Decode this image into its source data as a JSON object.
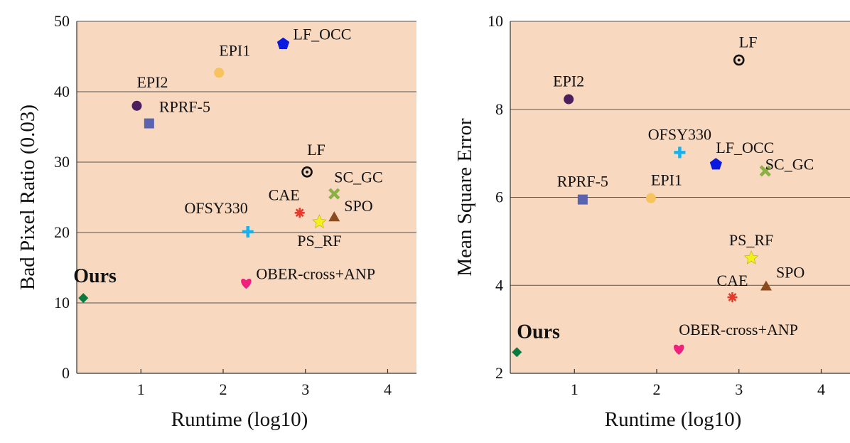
{
  "colors": {
    "plot_bg": "#f8d9bf",
    "grid": "#555555",
    "axis": "#333333"
  },
  "chart_data": [
    {
      "type": "scatter",
      "xlabel": "Runtime (log10)",
      "ylabel": "Bad Pixel Ratio (0.03)",
      "xlim": [
        0.22,
        4.35
      ],
      "ylim": [
        0,
        50
      ],
      "xticks": [
        1,
        2,
        3,
        4
      ],
      "yticks": [
        0,
        10,
        20,
        30,
        40,
        50
      ],
      "xtick_labels": [
        "1",
        "2",
        "3",
        "4"
      ],
      "ytick_labels": [
        "0",
        "10",
        "20",
        "30",
        "40",
        "50"
      ],
      "grid": "horizontal",
      "points": [
        {
          "name": "Ours",
          "x": 0.3,
          "y": 10.7,
          "marker": "diamond",
          "color": "#0b7a3e",
          "label_dx": -1,
          "label_dy": -22,
          "label_anchor": "start",
          "bold": true
        },
        {
          "name": "EPI2",
          "x": 0.95,
          "y": 38.0,
          "marker": "circle",
          "color": "#4a1f5c",
          "label_dx": 0,
          "label_dy": -26,
          "label_anchor": "start",
          "bold": false
        },
        {
          "name": "RPRF-5",
          "x": 1.1,
          "y": 35.5,
          "marker": "square",
          "color": "#5a63b0",
          "label_dx": 1,
          "label_dy": -16,
          "label_anchor": "start",
          "bold": false
        },
        {
          "name": "EPI1",
          "x": 1.95,
          "y": 42.7,
          "marker": "circle",
          "color": "#f6c35e",
          "label_dx": 0,
          "label_dy": -24,
          "label_anchor": "start",
          "bold": false
        },
        {
          "name": "LF_OCC",
          "x": 2.73,
          "y": 46.8,
          "marker": "pentagon",
          "color": "#0a18e0",
          "label_dx": 1,
          "label_dy": -6,
          "label_anchor": "start",
          "bold": false
        },
        {
          "name": "OFSY330",
          "x": 2.3,
          "y": 20.1,
          "marker": "plus",
          "color": "#19b0ec",
          "label_dx": 0,
          "label_dy": -26,
          "label_anchor": "end",
          "bold": false
        },
        {
          "name": "OBER-cross+ANP",
          "x": 2.28,
          "y": 12.8,
          "marker": "heart",
          "color": "#f0217e",
          "label_dx": 1,
          "label_dy": -6,
          "label_anchor": "start",
          "bold": false
        },
        {
          "name": "LF",
          "x": 3.02,
          "y": 28.6,
          "marker": "circledot",
          "color": "#111111",
          "label_dx": 0,
          "label_dy": -24,
          "label_anchor": "start",
          "bold": false
        },
        {
          "name": "CAE",
          "x": 2.93,
          "y": 22.8,
          "marker": "asterisk",
          "color": "#e53a2b",
          "label_dx": 0,
          "label_dy": -18,
          "label_anchor": "end",
          "bold": false
        },
        {
          "name": "PS_RF",
          "x": 3.17,
          "y": 21.5,
          "marker": "star",
          "color": "#f2f21a",
          "label_dx": 0,
          "label_dy": 34,
          "label_anchor": "middle",
          "bold": false
        },
        {
          "name": "SC_GC",
          "x": 3.35,
          "y": 25.5,
          "marker": "x",
          "color": "#8ab143",
          "label_dx": 0,
          "label_dy": -16,
          "label_anchor": "start",
          "bold": false
        },
        {
          "name": "SPO",
          "x": 3.35,
          "y": 22.2,
          "marker": "triangle",
          "color": "#8b4b1c",
          "label_dx": 1,
          "label_dy": -8,
          "label_anchor": "start",
          "bold": false
        }
      ]
    },
    {
      "type": "scatter",
      "xlabel": "Runtime (log10)",
      "ylabel": "Mean Square Error",
      "xlim": [
        0.22,
        4.35
      ],
      "ylim": [
        2,
        10
      ],
      "xticks": [
        1,
        2,
        3,
        4
      ],
      "yticks": [
        2,
        4,
        6,
        8,
        10
      ],
      "xtick_labels": [
        "1",
        "2",
        "3",
        "4"
      ],
      "ytick_labels": [
        "2",
        "4",
        "6",
        "8",
        "10"
      ],
      "grid": "horizontal",
      "points": [
        {
          "name": "Ours",
          "x": 0.3,
          "y": 2.48,
          "marker": "diamond",
          "color": "#0b7a3e",
          "label_dx": 0,
          "label_dy": -20,
          "label_anchor": "start",
          "bold": true
        },
        {
          "name": "EPI2",
          "x": 0.93,
          "y": 8.23,
          "marker": "circle",
          "color": "#4a1f5c",
          "label_dx": 0,
          "label_dy": -18,
          "label_anchor": "middle",
          "bold": false
        },
        {
          "name": "RPRF-5",
          "x": 1.1,
          "y": 5.95,
          "marker": "square",
          "color": "#5a63b0",
          "label_dx": 0,
          "label_dy": -18,
          "label_anchor": "middle",
          "bold": false
        },
        {
          "name": "EPI1",
          "x": 1.93,
          "y": 5.98,
          "marker": "circle",
          "color": "#f6c35e",
          "label_dx": 0,
          "label_dy": -18,
          "label_anchor": "start",
          "bold": false
        },
        {
          "name": "OFSY330",
          "x": 2.28,
          "y": 7.02,
          "marker": "plus",
          "color": "#19b0ec",
          "label_dx": 0,
          "label_dy": -18,
          "label_anchor": "middle",
          "bold": false
        },
        {
          "name": "LF_OCC",
          "x": 2.72,
          "y": 6.75,
          "marker": "pentagon",
          "color": "#0a18e0",
          "label_dx": 0,
          "label_dy": -16,
          "label_anchor": "start",
          "bold": false
        },
        {
          "name": "LF",
          "x": 3.0,
          "y": 9.12,
          "marker": "circledot",
          "color": "#111111",
          "label_dx": 0,
          "label_dy": -18,
          "label_anchor": "start",
          "bold": false
        },
        {
          "name": "SC_GC",
          "x": 3.32,
          "y": 6.6,
          "marker": "x",
          "color": "#8ab143",
          "label_dx": 0,
          "label_dy": -2,
          "label_anchor": "start",
          "bold": false
        },
        {
          "name": "PS_RF",
          "x": 3.15,
          "y": 4.62,
          "marker": "star",
          "color": "#f2f21a",
          "label_dx": 0,
          "label_dy": -18,
          "label_anchor": "middle",
          "bold": false
        },
        {
          "name": "CAE",
          "x": 2.92,
          "y": 3.73,
          "marker": "asterisk",
          "color": "#e53a2b",
          "label_dx": 0,
          "label_dy": -16,
          "label_anchor": "middle",
          "bold": false
        },
        {
          "name": "SPO",
          "x": 3.33,
          "y": 3.98,
          "marker": "triangle",
          "color": "#8b4b1c",
          "label_dx": 1,
          "label_dy": -12,
          "label_anchor": "start",
          "bold": false
        },
        {
          "name": "OBER-cross+ANP",
          "x": 2.27,
          "y": 2.55,
          "marker": "heart",
          "color": "#f0217e",
          "label_dx": 0,
          "label_dy": -20,
          "label_anchor": "start",
          "bold": false
        }
      ]
    }
  ]
}
